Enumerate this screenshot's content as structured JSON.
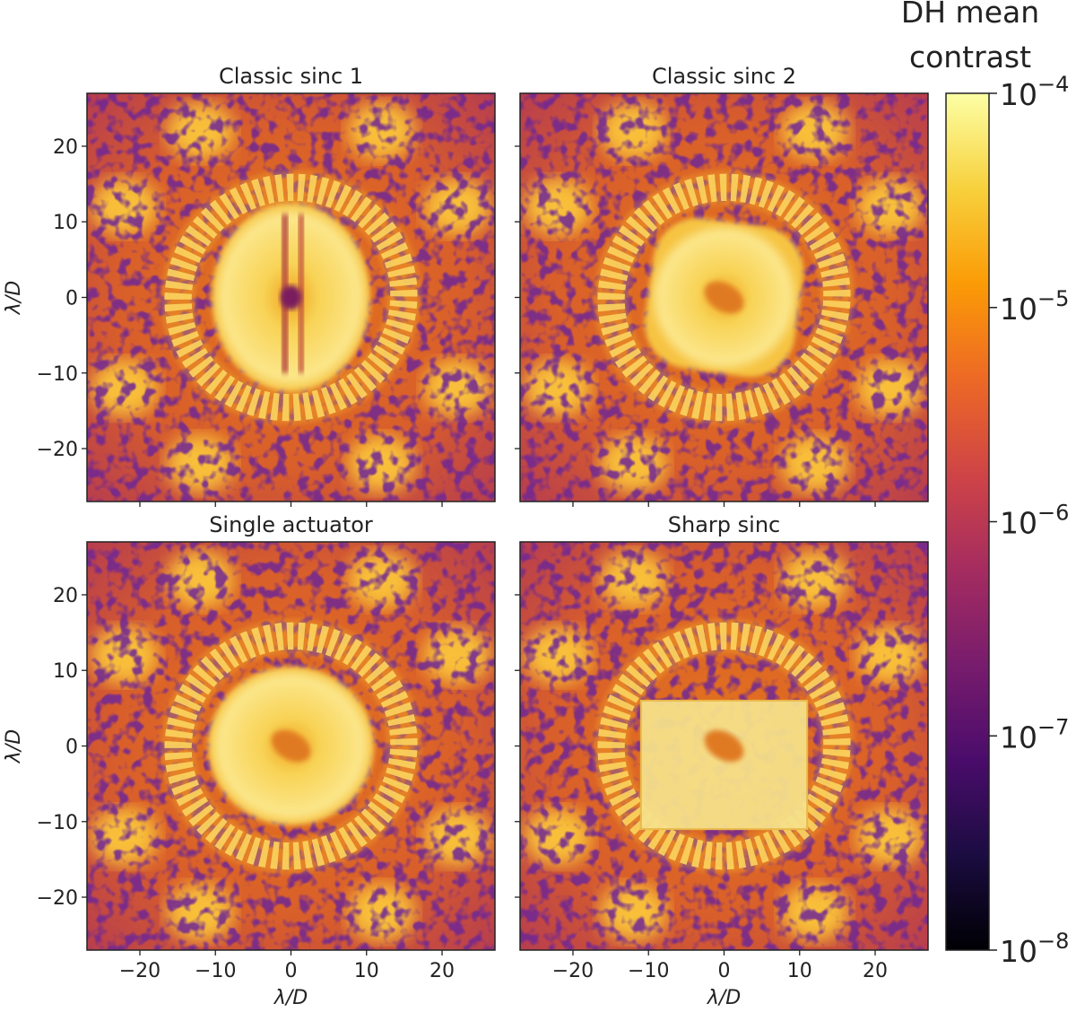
{
  "chart_data": {
    "type": "heatmap",
    "panel_axis_range": [
      -27,
      27
    ],
    "panels": [
      {
        "title": "Classic sinc 1",
        "variant": "split",
        "show_x_ticks": false,
        "show_y_ticks": true
      },
      {
        "title": "Classic sinc 2",
        "variant": "smooth",
        "show_x_ticks": false,
        "show_y_ticks": false
      },
      {
        "title": "Single actuator",
        "variant": "round",
        "show_x_ticks": true,
        "show_y_ticks": true
      },
      {
        "title": "Sharp sinc",
        "variant": "square",
        "show_x_ticks": true,
        "show_y_ticks": false
      }
    ],
    "tick_values": [
      -20,
      -10,
      0,
      10,
      20
    ],
    "tick_labels": [
      "−20",
      "−10",
      "0",
      "10",
      "20"
    ],
    "xlabel": "λ/D",
    "ylabel": "λ/D",
    "colorbar": {
      "title_line1": "DH mean",
      "title_line2": "contrast",
      "scale": "log",
      "range": [
        1e-08,
        0.0001
      ],
      "ticks": [
        {
          "value": 0.0001,
          "base": "10",
          "exp": "−4"
        },
        {
          "value": 1e-05,
          "base": "10",
          "exp": "−5"
        },
        {
          "value": 1e-06,
          "base": "10",
          "exp": "−6"
        },
        {
          "value": 1e-07,
          "base": "10",
          "exp": "−7"
        },
        {
          "value": 1e-08,
          "base": "10",
          "exp": "−8"
        }
      ],
      "colormap": "inferno",
      "stops": [
        "#000004",
        "#1b0c41",
        "#4a0c6b",
        "#781c6d",
        "#a52c60",
        "#cf4446",
        "#ed6925",
        "#fb9b06",
        "#f7d13d",
        "#fcffa4"
      ]
    }
  }
}
